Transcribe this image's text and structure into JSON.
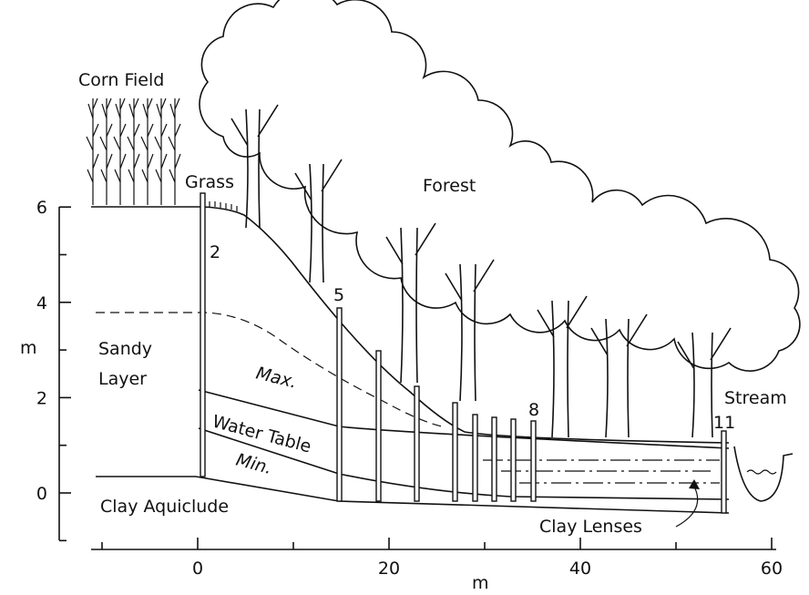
{
  "labels": {
    "corn_field": "Corn Field",
    "grass": "Grass",
    "forest": "Forest",
    "sandy": "Sandy",
    "layer": "Layer",
    "max": "Max.",
    "water_table": "Water Table",
    "min": "Min.",
    "clay_aquiclude": "Clay Aquiclude",
    "clay_lenses": "Clay Lenses",
    "stream": "Stream"
  },
  "wells": [
    "2",
    "5",
    "8",
    "11"
  ],
  "y_axis": {
    "label": "m",
    "ticks": [
      6,
      4,
      2,
      0
    ],
    "minor_ticks": [
      5,
      3,
      1,
      -1
    ]
  },
  "x_axis": {
    "label": "m",
    "ticks": [
      0,
      20,
      40,
      60
    ],
    "minor_ticks": [
      -10,
      10,
      30,
      50
    ]
  }
}
